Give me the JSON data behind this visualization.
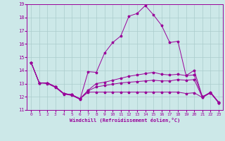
{
  "title": "",
  "xlabel": "Windchill (Refroidissement éolien,°C)",
  "background_color": "#cce8e8",
  "line_color": "#990099",
  "grid_color": "#aacccc",
  "xlim": [
    -0.5,
    23.5
  ],
  "ylim": [
    11,
    19
  ],
  "xticks": [
    0,
    1,
    2,
    3,
    4,
    5,
    6,
    7,
    8,
    9,
    10,
    11,
    12,
    13,
    14,
    15,
    16,
    17,
    18,
    19,
    20,
    21,
    22,
    23
  ],
  "yticks": [
    11,
    12,
    13,
    14,
    15,
    16,
    17,
    18,
    19
  ],
  "line1": [
    14.6,
    13.05,
    13.0,
    12.7,
    12.2,
    12.1,
    11.8,
    13.9,
    13.85,
    15.3,
    16.1,
    16.6,
    18.1,
    18.3,
    18.9,
    18.2,
    17.4,
    16.1,
    16.2,
    13.6,
    14.0,
    12.0,
    12.3,
    11.55
  ],
  "line2": [
    14.6,
    13.05,
    13.05,
    12.75,
    12.25,
    12.15,
    11.85,
    12.5,
    13.0,
    13.1,
    13.25,
    13.4,
    13.55,
    13.65,
    13.75,
    13.85,
    13.7,
    13.65,
    13.7,
    13.6,
    13.65,
    12.0,
    12.35,
    11.6
  ],
  "line3": [
    14.6,
    13.05,
    13.05,
    12.75,
    12.25,
    12.15,
    11.85,
    12.45,
    12.75,
    12.85,
    12.95,
    13.05,
    13.1,
    13.15,
    13.2,
    13.25,
    13.2,
    13.2,
    13.3,
    13.25,
    13.3,
    11.95,
    12.3,
    11.55
  ],
  "line4": [
    14.6,
    13.05,
    13.05,
    12.75,
    12.25,
    12.15,
    11.85,
    12.35,
    12.35,
    12.35,
    12.35,
    12.35,
    12.35,
    12.35,
    12.35,
    12.35,
    12.35,
    12.35,
    12.35,
    12.25,
    12.3,
    11.95,
    12.3,
    11.55
  ]
}
